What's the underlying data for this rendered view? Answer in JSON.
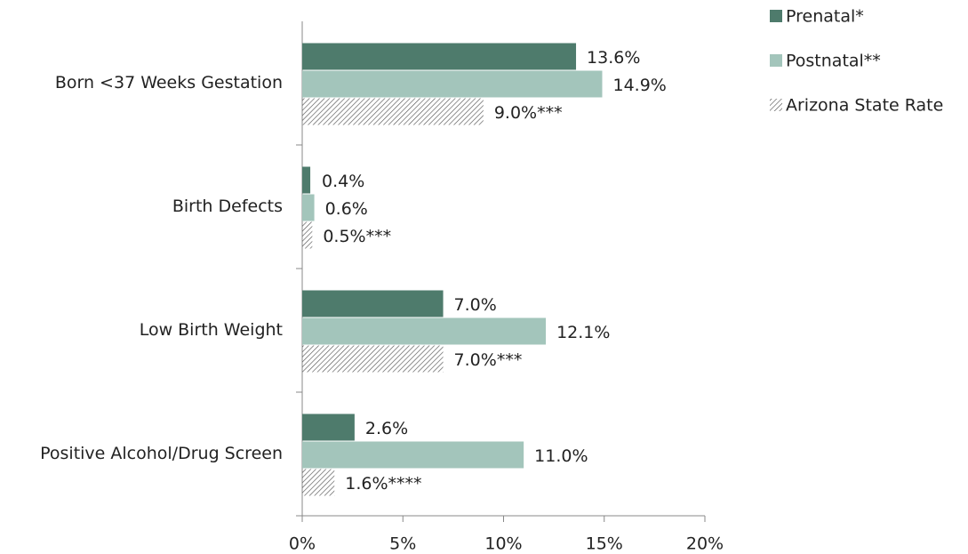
{
  "chart_data": {
    "type": "hbar",
    "categories": [
      "Born <37 Weeks Gestation",
      "Birth Defects",
      "Low Birth Weight",
      "Positive Alcohol/Drug Screen"
    ],
    "series": [
      {
        "name": "Prenatal*",
        "color": "#4e7b6c",
        "values": [
          13.6,
          0.4,
          7.0,
          2.6
        ],
        "value_labels": [
          "13.6%",
          "0.4%",
          "7.0%",
          "2.6%"
        ]
      },
      {
        "name": "Postnatal**",
        "color": "#a3c5bb",
        "values": [
          14.9,
          0.6,
          12.1,
          11.0
        ],
        "value_labels": [
          "14.9%",
          "0.6%",
          "12.1%",
          "11.0%"
        ]
      },
      {
        "name": "Arizona State Rate",
        "color": "#555555",
        "hatch": true,
        "values": [
          9.0,
          0.5,
          7.0,
          1.6
        ],
        "value_labels": [
          "9.0%***",
          "0.5%***",
          "7.0%***",
          "1.6%****"
        ]
      }
    ],
    "xlim": [
      0,
      20
    ],
    "xticks": [
      {
        "value": 0,
        "label": "0%"
      },
      {
        "value": 5,
        "label": "5%"
      },
      {
        "value": 10,
        "label": "10%"
      },
      {
        "value": 15,
        "label": "15%"
      },
      {
        "value": 20,
        "label": "20%"
      }
    ],
    "legend": "top-right"
  }
}
